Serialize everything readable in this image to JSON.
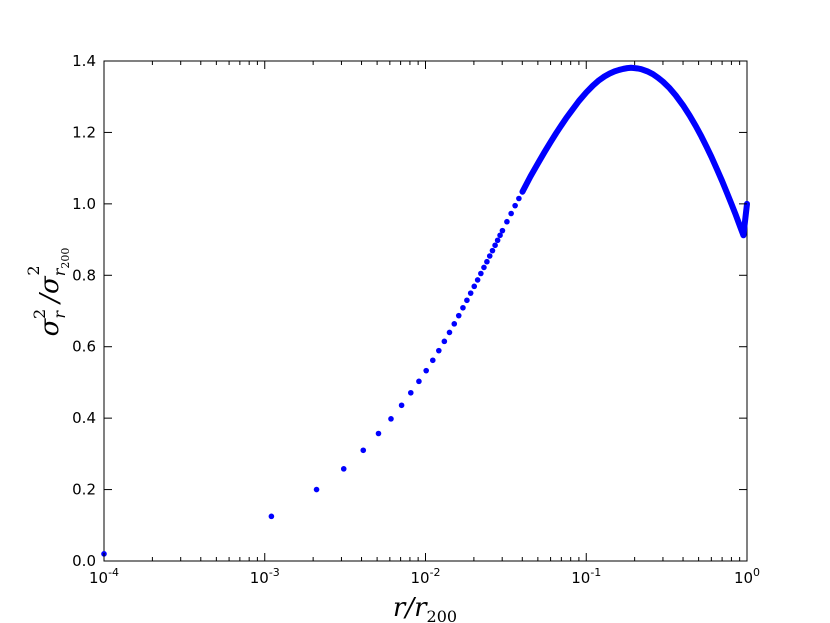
{
  "chart_data": {
    "type": "scatter",
    "title": "",
    "x_scale": "log",
    "xlim": [
      0.0001,
      1
    ],
    "ylim": [
      0.0,
      1.4
    ],
    "grid": false,
    "legend": "none",
    "marker_color": "#0000ff",
    "x_ticks": [
      {
        "value": 0.0001,
        "base": "10",
        "exp": "-4"
      },
      {
        "value": 0.001,
        "base": "10",
        "exp": "-3"
      },
      {
        "value": 0.01,
        "base": "10",
        "exp": "-2"
      },
      {
        "value": 0.1,
        "base": "10",
        "exp": "-1"
      },
      {
        "value": 1,
        "base": "10",
        "exp": "0"
      }
    ],
    "y_ticks": [
      {
        "value": 0.0,
        "label": "0.0"
      },
      {
        "value": 0.2,
        "label": "0.2"
      },
      {
        "value": 0.4,
        "label": "0.4"
      },
      {
        "value": 0.6,
        "label": "0.6"
      },
      {
        "value": 0.8,
        "label": "0.8"
      },
      {
        "value": 1.0,
        "label": "1.0"
      },
      {
        "value": 1.2,
        "label": "1.2"
      },
      {
        "value": 1.4,
        "label": "1.4"
      }
    ],
    "xlabel": {
      "main": "r/r",
      "sub": "200"
    },
    "ylabel": {
      "sigma1": "σ",
      "sub1": "r",
      "sup1": "2",
      "slash": "/",
      "sigma2": "σ",
      "sub2": "r",
      "sub2sub": "200",
      "sup2": "2"
    },
    "points": {
      "x": [
        0.0001,
        0.0011,
        0.0021,
        0.0031,
        0.0041,
        0.0051,
        0.0061,
        0.0071,
        0.0081,
        0.0091,
        0.0101,
        0.0111,
        0.0121,
        0.0131,
        0.0141,
        0.0151,
        0.0161,
        0.0171,
        0.0181,
        0.0191,
        0.0201,
        0.0211,
        0.0221,
        0.0231,
        0.0241,
        0.0251,
        0.0261,
        0.0271,
        0.0281,
        0.0291,
        0.0301,
        0.0321,
        0.0341,
        0.0361,
        0.0381,
        0.0401,
        0.045,
        0.05,
        0.055,
        0.06,
        0.065,
        0.07,
        0.075,
        0.08,
        0.09,
        0.1,
        0.11,
        0.12,
        0.13,
        0.14,
        0.15,
        0.16,
        0.17,
        0.18,
        0.19,
        0.2,
        0.21,
        0.22,
        0.24,
        0.26,
        0.28,
        0.3,
        0.33,
        0.36,
        0.4,
        0.44,
        0.48,
        0.52,
        0.56,
        0.6,
        0.65,
        0.7,
        0.75,
        0.8,
        0.85,
        0.9,
        0.95,
        1.0
      ],
      "y": [
        0.02,
        0.125,
        0.2,
        0.258,
        0.31,
        0.357,
        0.398,
        0.436,
        0.471,
        0.503,
        0.533,
        0.562,
        0.589,
        0.615,
        0.64,
        0.664,
        0.687,
        0.709,
        0.73,
        0.75,
        0.769,
        0.787,
        0.805,
        0.822,
        0.838,
        0.854,
        0.869,
        0.884,
        0.898,
        0.912,
        0.925,
        0.95,
        0.973,
        0.995,
        1.015,
        1.034,
        1.077,
        1.113,
        1.145,
        1.173,
        1.198,
        1.22,
        1.24,
        1.257,
        1.288,
        1.312,
        1.331,
        1.346,
        1.357,
        1.365,
        1.371,
        1.375,
        1.378,
        1.38,
        1.381,
        1.38,
        1.379,
        1.377,
        1.371,
        1.363,
        1.353,
        1.342,
        1.324,
        1.304,
        1.276,
        1.247,
        1.218,
        1.189,
        1.16,
        1.132,
        1.097,
        1.064,
        1.031,
        1.0,
        0.97,
        0.94,
        0.912,
        1.0
      ]
    }
  }
}
